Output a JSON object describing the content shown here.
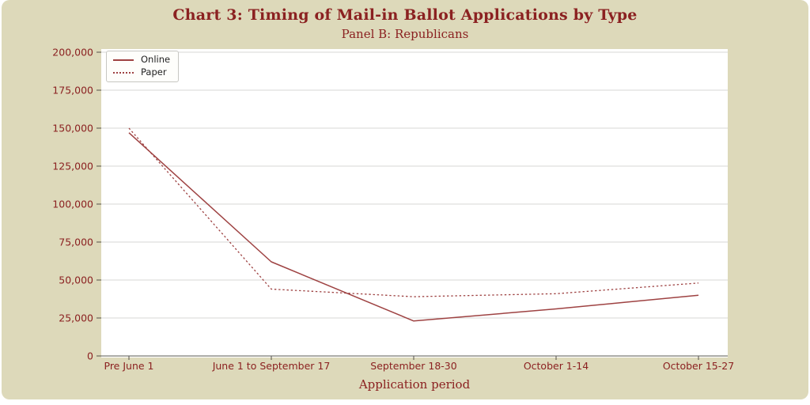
{
  "chart_data": {
    "type": "line",
    "title": "Chart 3: Timing of Mail-in Ballot Applications by Type",
    "subtitle": "Panel B: Republicans",
    "xlabel": "Application period",
    "ylabel": "",
    "categories": [
      "Pre June 1",
      "June 1 to September 17",
      "September 18-30",
      "October 1-14",
      "October 15-27"
    ],
    "series": [
      {
        "name": "Online",
        "style": "solid",
        "values": [
          147000,
          62000,
          23000,
          31000,
          40000
        ]
      },
      {
        "name": "Paper",
        "style": "dashed",
        "values": [
          150000,
          44000,
          39000,
          41000,
          48000
        ]
      }
    ],
    "ylim": [
      0,
      200000
    ],
    "yticks": [
      0,
      25000,
      50000,
      75000,
      100000,
      125000,
      150000,
      175000,
      200000
    ],
    "ytick_labels": [
      "0",
      "25,000",
      "50,000",
      "75,000",
      "100,000",
      "125,000",
      "150,000",
      "175,000",
      "200,000"
    ],
    "grid": true,
    "legend_position": "upper left",
    "colors": {
      "line": "#9e4242",
      "text": "#8b2121",
      "grid": "#d7d7d4",
      "axis": "#a0a09b",
      "tick": "#55514a",
      "plot_bg": "#ffffff",
      "card_bg": "#ddd9ba",
      "legend_text": "#1f1f1f"
    }
  }
}
